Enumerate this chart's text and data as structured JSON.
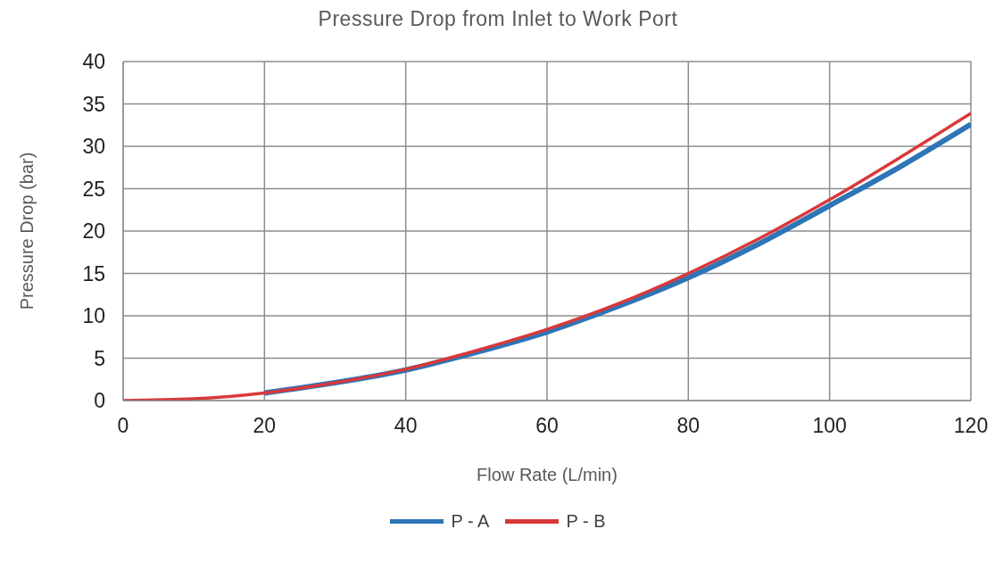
{
  "chart_data": {
    "type": "line",
    "title": "Pressure Drop from Inlet to Work Port",
    "xlabel": "Flow Rate (L/min)",
    "ylabel": "Pressure Drop (bar)",
    "x": [
      0,
      10,
      20,
      30,
      40,
      50,
      60,
      70,
      80,
      90,
      100,
      110,
      120
    ],
    "series": [
      {
        "name": "P - A",
        "color": "#2e75b6",
        "values": [
          null,
          null,
          0.9,
          2.1,
          3.6,
          5.7,
          8.1,
          11.1,
          14.5,
          18.5,
          23.0,
          27.6,
          32.6
        ]
      },
      {
        "name": "P - B",
        "color": "#d9383a",
        "values": [
          0,
          0.2,
          0.9,
          2.1,
          3.7,
          5.9,
          8.4,
          11.4,
          15.0,
          19.1,
          23.7,
          28.7,
          33.9
        ]
      }
    ],
    "xlim": [
      0,
      120
    ],
    "xticks": [
      0,
      20,
      40,
      60,
      80,
      100,
      120
    ],
    "ylim": [
      0,
      40
    ],
    "yticks": [
      0,
      5,
      10,
      15,
      20,
      25,
      30,
      35,
      40
    ],
    "grid": true,
    "legend": "bottom",
    "marker": "none",
    "line_style": "solid"
  }
}
